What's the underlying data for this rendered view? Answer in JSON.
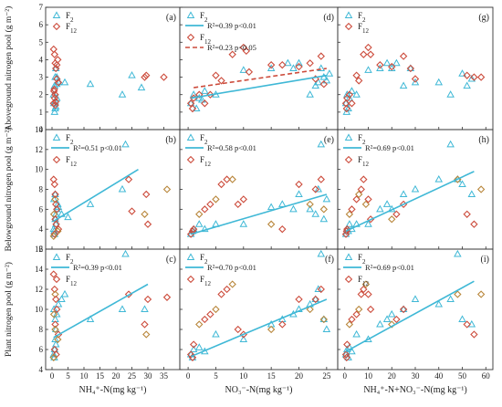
{
  "chart_data": {
    "type": "scatter",
    "layout": "3x3 grid",
    "legend_labels": {
      "F2": "F",
      "F2_sub": "2",
      "F12": "F",
      "F12_sub": "12"
    },
    "colors": {
      "F2": "#3fb8d6",
      "F12": "#cc4b3b",
      "F12_panel_bc": "#b8863a"
    },
    "rows": [
      {
        "ylabel": "Aboveground nitrogen pool (g m⁻²)",
        "ylim": [
          0,
          7
        ],
        "yticks": [
          0,
          1,
          2,
          3,
          4,
          5,
          6,
          7
        ]
      },
      {
        "ylabel": "Belowground nitrogen pool (g m⁻²)",
        "ylim": [
          2,
          14
        ],
        "yticks": [
          2,
          4,
          6,
          8,
          10,
          12,
          14
        ]
      },
      {
        "ylabel": "Plant nitrogen pool (g m⁻²)",
        "ylim": [
          4,
          16
        ],
        "yticks": [
          4,
          6,
          8,
          10,
          12,
          14,
          16
        ]
      }
    ],
    "columns": [
      {
        "xlabel": "NH₄⁺-N(mg kg⁻¹)",
        "xlim": [
          -2,
          40
        ],
        "xticks": [
          0,
          5,
          10,
          15,
          20,
          25,
          30,
          35
        ]
      },
      {
        "xlabel": "NO₃⁻-N(mg kg⁻¹)",
        "xlim": [
          -1.5,
          27
        ],
        "xticks": [
          0,
          5,
          10,
          15,
          20,
          25
        ]
      },
      {
        "xlabel": "NH₄⁺-N+NO₃⁻-N(mg kg⁻¹)",
        "xlim": [
          -3,
          63
        ],
        "xticks": [
          0,
          10,
          20,
          30,
          40,
          50,
          60
        ]
      }
    ],
    "panels": [
      {
        "label": "(a)",
        "row": 0,
        "col": 0,
        "F2": {
          "x": [
            0.5,
            0.8,
            1.0,
            1.2,
            1.5,
            0.6,
            1.0,
            1.5,
            2.0,
            4.0,
            12.0,
            22.0,
            25.0,
            28.0,
            1.0,
            0.8,
            1.2,
            1.5
          ],
          "y": [
            2.0,
            2.5,
            3.0,
            3.5,
            3.0,
            1.5,
            1.2,
            2.6,
            2.7,
            2.7,
            2.6,
            2.0,
            3.1,
            2.4,
            1.6,
            1.0,
            1.3,
            1.8
          ]
        },
        "F12": {
          "x": [
            0.5,
            0.8,
            1.0,
            1.2,
            1.5,
            0.6,
            1.0,
            1.5,
            2.0,
            0.8,
            1.2,
            0.5,
            1.0,
            29.0,
            29.5,
            35.0,
            1.8,
            0.7
          ],
          "y": [
            4.6,
            4.3,
            3.8,
            3.5,
            3.7,
            2.2,
            2.0,
            2.9,
            2.7,
            1.8,
            1.6,
            1.5,
            1.4,
            3.0,
            3.1,
            3.0,
            4.0,
            2.3
          ]
        },
        "fits": []
      },
      {
        "label": "(d)",
        "row": 0,
        "col": 1,
        "F2": {
          "x": [
            0.5,
            1.0,
            2.0,
            3.0,
            5.0,
            10.0,
            15.0,
            18.0,
            19.0,
            20.0,
            22.0,
            23.0,
            24.0,
            24.5,
            25.0,
            25.5,
            23.5,
            1.5,
            2.5
          ],
          "y": [
            1.5,
            2.0,
            1.8,
            2.2,
            2.0,
            3.4,
            3.5,
            3.8,
            3.5,
            3.8,
            2.0,
            2.5,
            3.5,
            3.0,
            2.8,
            3.2,
            2.7,
            1.2,
            1.7
          ]
        },
        "F12": {
          "x": [
            0.5,
            1.0,
            2.0,
            3.0,
            4.0,
            5.0,
            6.0,
            8.0,
            10.0,
            10.5,
            11.0,
            15.0,
            17.0,
            20.0,
            22.0,
            23.0,
            24.0,
            24.5,
            0.8
          ],
          "y": [
            1.5,
            1.8,
            2.0,
            1.5,
            2.0,
            3.1,
            2.8,
            4.3,
            4.7,
            4.5,
            3.3,
            3.7,
            3.7,
            3.6,
            3.8,
            2.9,
            4.2,
            2.6,
            1.2
          ]
        },
        "legend": [
          "R²=0.39 p<0.01",
          "R²=0.23 p<0.05"
        ],
        "fits": [
          {
            "series": "F2",
            "x": [
              0.5,
              25.0
            ],
            "y": [
              1.8,
              3.1
            ],
            "style": "solid",
            "label": "R²=0.39 p<0.01"
          },
          {
            "series": "F12",
            "x": [
              1.0,
              25.0
            ],
            "y": [
              2.4,
              3.5
            ],
            "style": "dashed",
            "label": "R²=0.23 p<0.05"
          }
        ]
      },
      {
        "label": "(g)",
        "row": 0,
        "col": 2,
        "F2": {
          "x": [
            0.5,
            1.0,
            2.0,
            3.0,
            5.0,
            10.0,
            15.0,
            18.0,
            20.0,
            22.0,
            25.0,
            28.0,
            30.0,
            40.0,
            45.0,
            50.0,
            52.0,
            54.0,
            1.5,
            0.8
          ],
          "y": [
            1.5,
            2.0,
            1.8,
            2.2,
            2.0,
            3.4,
            3.5,
            3.8,
            3.5,
            3.8,
            2.5,
            3.5,
            2.7,
            2.7,
            2.0,
            3.2,
            2.5,
            2.9,
            1.2,
            1.0
          ]
        },
        "F12": {
          "x": [
            0.5,
            1.0,
            2.0,
            3.0,
            5.0,
            6.0,
            8.0,
            10.0,
            11.0,
            15.0,
            20.0,
            25.0,
            28.0,
            30.0,
            52.0,
            55.0,
            58.0,
            0.8
          ],
          "y": [
            1.5,
            1.8,
            2.0,
            1.5,
            3.1,
            2.8,
            4.3,
            4.7,
            4.3,
            3.7,
            3.6,
            4.2,
            3.5,
            2.9,
            3.1,
            3.0,
            3.0,
            1.2
          ]
        },
        "fits": []
      },
      {
        "label": "(b)",
        "row": 1,
        "col": 0,
        "F2": {
          "x": [
            0.5,
            0.8,
            1.0,
            1.2,
            1.5,
            1.8,
            0.6,
            1.0,
            2.0,
            3.0,
            5.0,
            12.0,
            22.0,
            23.0,
            1.2,
            0.7
          ],
          "y": [
            4.0,
            3.5,
            5.0,
            5.5,
            6.0,
            6.5,
            7.0,
            7.5,
            6.2,
            5.5,
            5.2,
            6.5,
            8.0,
            12.5,
            4.5,
            3.8
          ]
        },
        "F12": {
          "x": [
            0.5,
            0.8,
            1.0,
            1.2,
            1.5,
            0.6,
            1.0,
            2.0,
            1.8,
            0.8,
            1.3,
            0.5,
            24.0,
            25.0,
            29.0,
            29.5,
            30.0,
            36.0,
            1.0
          ],
          "y": [
            9.0,
            8.5,
            7.0,
            6.5,
            6.0,
            5.5,
            5.0,
            4.0,
            3.8,
            3.5,
            4.5,
            3.3,
            9.0,
            5.8,
            5.5,
            7.5,
            4.5,
            8.0,
            7.5
          ]
        },
        "legend": [
          "R²=0.51 p<0.01"
        ],
        "fits": [
          {
            "series": "F2",
            "x": [
              0.5,
              27.0
            ],
            "y": [
              4.8,
              10.0
            ],
            "style": "solid",
            "label": "R²=0.51 p<0.01"
          }
        ]
      },
      {
        "label": "(e)",
        "row": 1,
        "col": 1,
        "F2": {
          "x": [
            0.5,
            1.0,
            2.0,
            3.0,
            5.0,
            10.0,
            15.0,
            17.0,
            19.0,
            20.0,
            22.0,
            23.0,
            23.5,
            24.0,
            24.5,
            25.0,
            0.8
          ],
          "y": [
            3.5,
            4.0,
            4.5,
            4.0,
            4.5,
            4.5,
            6.2,
            6.5,
            6.0,
            7.5,
            6.0,
            5.5,
            8.0,
            12.5,
            5.0,
            7.0,
            3.8
          ]
        },
        "F12": {
          "x": [
            0.5,
            1.0,
            2.0,
            3.0,
            4.0,
            5.0,
            6.0,
            7.0,
            8.0,
            9.0,
            10.0,
            15.0,
            17.0,
            20.0,
            22.0,
            23.0,
            24.0,
            24.5,
            0.8
          ],
          "y": [
            3.5,
            4.0,
            5.5,
            6.0,
            6.5,
            7.0,
            8.5,
            9.0,
            9.0,
            6.5,
            7.0,
            4.5,
            4.0,
            8.5,
            6.5,
            8.0,
            9.0,
            6.0,
            3.8
          ]
        },
        "legend": [
          "R²=0.58 p<0.01"
        ],
        "fits": [
          {
            "series": "F2",
            "x": [
              0.5,
              25.0
            ],
            "y": [
              3.5,
              7.5
            ],
            "style": "solid",
            "label": "R²=0.58 p<0.01"
          }
        ]
      },
      {
        "label": "(h)",
        "row": 1,
        "col": 2,
        "F2": {
          "x": [
            0.5,
            1.0,
            2.0,
            3.0,
            5.0,
            10.0,
            15.0,
            18.0,
            20.0,
            25.0,
            30.0,
            40.0,
            45.0,
            48.0,
            50.0,
            54.0,
            1.5
          ],
          "y": [
            3.5,
            4.0,
            4.5,
            4.0,
            4.5,
            4.5,
            6.0,
            6.5,
            6.0,
            7.5,
            8.0,
            9.0,
            12.5,
            9.0,
            8.5,
            7.5,
            3.8
          ]
        },
        "F12": {
          "x": [
            0.5,
            1.0,
            2.0,
            3.0,
            5.0,
            6.0,
            7.0,
            8.0,
            9.0,
            10.0,
            11.0,
            20.0,
            22.0,
            25.0,
            48.0,
            52.0,
            55.0,
            58.0,
            0.8
          ],
          "y": [
            3.5,
            4.0,
            5.5,
            6.0,
            7.0,
            7.5,
            8.0,
            9.0,
            6.5,
            7.0,
            5.0,
            5.0,
            5.5,
            6.5,
            9.0,
            5.5,
            4.5,
            8.0,
            3.8
          ]
        },
        "legend": [
          "R²=0.69 p<0.01"
        ],
        "fits": [
          {
            "series": "F2",
            "x": [
              0.5,
              55.0
            ],
            "y": [
              3.8,
              9.8
            ],
            "style": "solid",
            "label": "R²=0.69 p<0.01"
          }
        ]
      },
      {
        "label": "(c)",
        "row": 2,
        "col": 0,
        "F2": {
          "x": [
            0.5,
            0.8,
            1.0,
            1.2,
            1.5,
            0.6,
            1.0,
            2.0,
            3.0,
            4.0,
            12.0,
            22.0,
            23.0,
            29.0,
            1.2,
            0.7
          ],
          "y": [
            5.5,
            6.0,
            7.0,
            8.0,
            9.5,
            10.0,
            9.0,
            10.5,
            11.0,
            11.5,
            9.0,
            10.0,
            15.5,
            10.0,
            6.5,
            5.2
          ]
        },
        "F12": {
          "x": [
            0.5,
            0.8,
            1.0,
            1.2,
            1.5,
            0.6,
            1.0,
            2.0,
            1.8,
            0.8,
            1.3,
            0.5,
            24.0,
            29.0,
            29.5,
            30.0,
            36.0,
            1.0
          ],
          "y": [
            13.5,
            12.0,
            11.5,
            11.0,
            10.0,
            9.5,
            8.5,
            7.5,
            7.0,
            6.0,
            5.5,
            5.2,
            11.5,
            8.5,
            7.5,
            11.0,
            11.2,
            8.0
          ]
        },
        "legend": [
          "R²=0.39 p<0.01"
        ],
        "fits": [
          {
            "series": "F2",
            "x": [
              0.5,
              30.0
            ],
            "y": [
              7.2,
              12.5
            ],
            "style": "solid",
            "label": "R²=0.39 p<0.01"
          }
        ]
      },
      {
        "label": "(f)",
        "row": 2,
        "col": 1,
        "F2": {
          "x": [
            0.5,
            1.0,
            2.0,
            3.0,
            5.0,
            10.0,
            15.0,
            17.0,
            19.0,
            20.0,
            22.0,
            23.0,
            23.5,
            24.0,
            24.5,
            25.0,
            0.8
          ],
          "y": [
            5.5,
            6.0,
            6.2,
            5.8,
            7.5,
            7.0,
            8.5,
            9.0,
            9.5,
            10.0,
            10.5,
            11.0,
            12.0,
            15.5,
            9.0,
            8.0,
            5.2
          ]
        },
        "F12": {
          "x": [
            0.5,
            1.0,
            2.0,
            3.0,
            4.0,
            5.0,
            6.0,
            7.0,
            8.0,
            9.0,
            10.0,
            15.0,
            17.0,
            20.0,
            22.0,
            23.0,
            24.0,
            24.5,
            0.8
          ],
          "y": [
            5.5,
            6.5,
            8.5,
            9.0,
            9.5,
            10.0,
            11.5,
            12.0,
            12.5,
            8.0,
            7.5,
            8.0,
            8.5,
            11.0,
            10.0,
            11.0,
            12.0,
            9.0,
            5.2
          ]
        },
        "legend": [
          "R²=0.70 p<0.01"
        ],
        "fits": [
          {
            "series": "F2",
            "x": [
              0.5,
              25.0
            ],
            "y": [
              5.3,
              11.0
            ],
            "style": "solid",
            "label": "R²=0.70 p<0.01"
          }
        ]
      },
      {
        "label": "(i)",
        "row": 2,
        "col": 2,
        "F2": {
          "x": [
            0.5,
            1.0,
            2.0,
            3.0,
            5.0,
            10.0,
            15.0,
            18.0,
            20.0,
            25.0,
            30.0,
            40.0,
            45.0,
            48.0,
            50.0,
            54.0,
            1.5
          ],
          "y": [
            5.5,
            6.0,
            6.2,
            5.8,
            7.5,
            7.0,
            8.5,
            9.0,
            9.5,
            10.0,
            11.0,
            10.5,
            11.0,
            15.5,
            9.0,
            8.5,
            5.2
          ]
        },
        "F12": {
          "x": [
            0.5,
            1.0,
            2.0,
            3.0,
            5.0,
            6.0,
            7.0,
            8.0,
            9.0,
            10.0,
            11.0,
            20.0,
            22.0,
            25.0,
            48.0,
            52.0,
            55.0,
            58.0,
            0.8
          ],
          "y": [
            5.5,
            6.5,
            8.5,
            9.0,
            9.5,
            10.0,
            11.5,
            12.0,
            12.5,
            11.5,
            10.0,
            8.5,
            9.0,
            10.0,
            11.5,
            8.5,
            7.5,
            11.5,
            5.2
          ]
        },
        "legend": [
          "R²=0.69 p<0.01"
        ],
        "fits": [
          {
            "series": "F2",
            "x": [
              0.5,
              55.0
            ],
            "y": [
              5.8,
              12.8
            ],
            "style": "solid",
            "label": "R²=0.69 p<0.01"
          }
        ]
      }
    ]
  }
}
